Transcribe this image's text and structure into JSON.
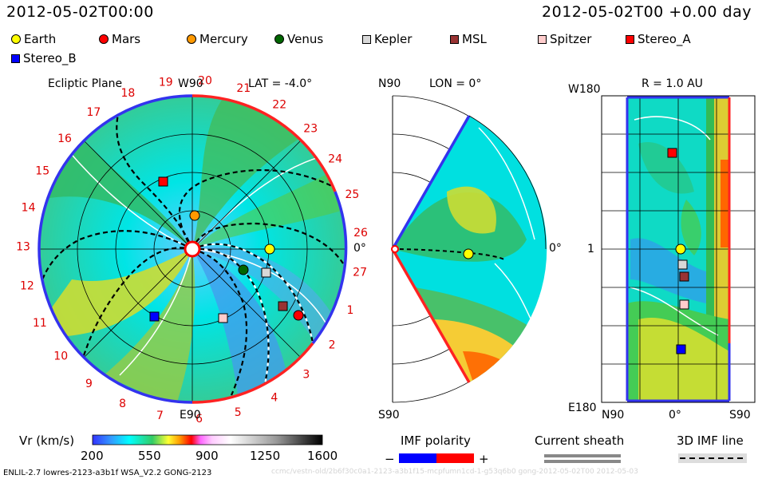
{
  "header": {
    "datetime_left": "2012-05-02T00:00",
    "datetime_right": "2012-05-02T00 +0.00 day"
  },
  "legend": [
    {
      "name": "Earth",
      "shape": "circle",
      "color": "#ffff00"
    },
    {
      "name": "Mars",
      "shape": "circle",
      "color": "#ff0000"
    },
    {
      "name": "Mercury",
      "shape": "circle",
      "color": "#ff9900"
    },
    {
      "name": "Venus",
      "shape": "circle",
      "color": "#006600"
    },
    {
      "name": "Kepler",
      "shape": "square",
      "color": "#d8d8d8"
    },
    {
      "name": "MSL",
      "shape": "square",
      "color": "#993333"
    },
    {
      "name": "Spitzer",
      "shape": "square",
      "color": "#ffcccc"
    },
    {
      "name": "Stereo_A",
      "shape": "square",
      "color": "#ff0000"
    },
    {
      "name": "Stereo_B",
      "shape": "square",
      "color": "#0000ff"
    }
  ],
  "panels": {
    "ecliptic": {
      "title": "Ecliptic Plane",
      "lat_label": "LAT = -4.0°",
      "top_label": "W90",
      "bottom_label": "E90",
      "right_label": "0°",
      "carrington_ticks": [
        "19",
        "20",
        "21",
        "22",
        "23",
        "24",
        "25",
        "26",
        "27",
        "1",
        "2",
        "3",
        "4",
        "5",
        "6",
        "7",
        "8",
        "9",
        "10",
        "11",
        "12",
        "13",
        "14",
        "15",
        "16",
        "17",
        "18"
      ]
    },
    "meridional": {
      "lon_label": "LON = 0°",
      "top_label": "N90",
      "bottom_label": "S90",
      "right_label": "0°"
    },
    "map": {
      "r_label": "R = 1.0 AU",
      "top_left_label": "W180",
      "mid_left_label": "1",
      "bottom_left_label": "E180",
      "x_labels": [
        "N90",
        "0°",
        "S90"
      ]
    }
  },
  "colorbar": {
    "label": "Vr (km/s)",
    "ticks": [
      "200",
      "550",
      "900",
      "1250",
      "1600"
    ],
    "range": [
      200,
      1600
    ]
  },
  "bottom_legend": {
    "imf_polarity": "IMF polarity",
    "minus": "−",
    "plus": "+",
    "current_sheath": "Current sheath",
    "imf_line": "3D IMF line"
  },
  "footer": {
    "model_info": "ENLIL-2.7 lowres-2123-a3b1f WSA_V2.2 GONG-2123",
    "watermark": "ccmc/vestn-old/2b6f30c0a1-2123-a3b1f15-mcpfumn1cd-1-g53q6b0 gong-2012-05-02T00   2012-05-03"
  },
  "chart_data": [
    {
      "type": "heatmap",
      "title": "Ecliptic Plane",
      "subtitle": "LAT = -4.0°",
      "quantity": "Vr (km/s)",
      "value_range": [
        200,
        1600
      ],
      "radial_range_au": [
        0.1,
        2.0
      ],
      "objects_r_au_lon_deg": [
        {
          "name": "Earth",
          "r": 1.0,
          "lon": 0
        },
        {
          "name": "Mercury",
          "r": 0.45,
          "lon": 95
        },
        {
          "name": "Venus",
          "r": 0.72,
          "lon": -33
        },
        {
          "name": "Mars",
          "r": 1.6,
          "lon": -27
        },
        {
          "name": "Kepler",
          "r": 0.95,
          "lon": -28
        },
        {
          "name": "MSL",
          "r": 1.35,
          "lon": -26
        },
        {
          "name": "Spitzer",
          "r": 1.05,
          "lon": -53
        },
        {
          "name": "Stereo_A",
          "r": 1.0,
          "lon": 115
        },
        {
          "name": "Stereo_B",
          "r": 1.0,
          "lon": -117
        }
      ]
    },
    {
      "type": "heatmap",
      "title": "LON = 0°",
      "quantity": "Vr (km/s)",
      "lat_range_deg": [
        -60,
        60
      ],
      "objects": [
        {
          "name": "Earth",
          "r": 1.0,
          "lat": -4
        }
      ]
    },
    {
      "type": "heatmap",
      "title": "R = 1.0 AU",
      "quantity": "Vr (km/s)",
      "x_axis": "latitude (N90 to S90)",
      "y_axis": "longitude (W180 to E180)",
      "objects_lat_lon": [
        {
          "name": "Earth",
          "lat": 0,
          "lon": 0
        },
        {
          "name": "Stereo_A",
          "lat": 7,
          "lon": 115
        },
        {
          "name": "Kepler",
          "lat": -5,
          "lon": -28
        },
        {
          "name": "MSL",
          "lat": -8,
          "lon": -35
        },
        {
          "name": "Spitzer",
          "lat": -6,
          "lon": -50
        },
        {
          "name": "Stereo_B",
          "lat": -4,
          "lon": -117
        }
      ]
    }
  ]
}
